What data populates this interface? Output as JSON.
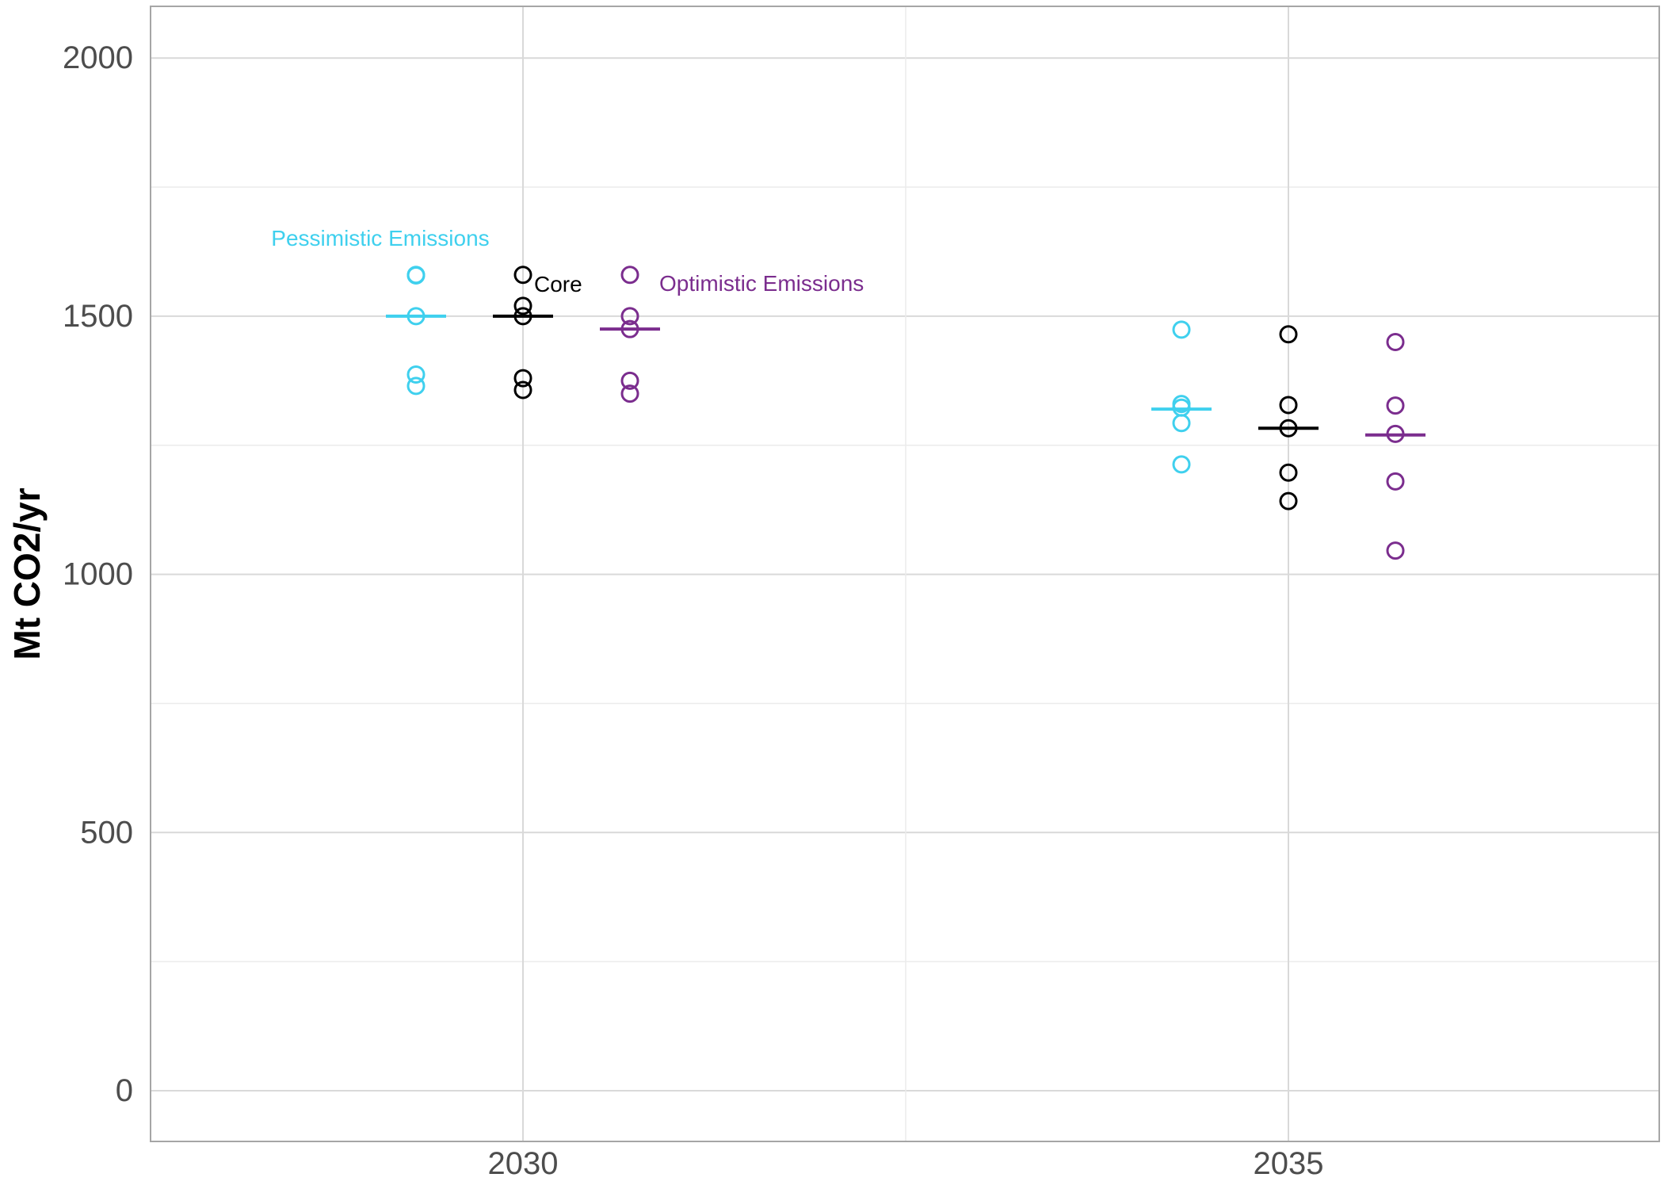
{
  "chart_data": {
    "type": "scatter",
    "title": "",
    "xlabel": "",
    "ylabel": "Mt CO2/yr",
    "ylim": [
      -100,
      2100
    ],
    "y_ticks": [
      0,
      500,
      1000,
      1500,
      2000
    ],
    "y_tick_labels": [
      "0",
      "500",
      "1000",
      "1500",
      "2000"
    ],
    "categories": [
      "2030",
      "2035"
    ],
    "grid": true,
    "legend": "none",
    "series": [
      {
        "name": "Pessimistic Emissions",
        "color": "#3fd0ee",
        "points": {
          "2030": [
            1580,
            1579,
            1500,
            1387,
            1365
          ],
          "2035": [
            1474,
            1330,
            1323,
            1293,
            1213
          ]
        },
        "median": {
          "2030": 1500,
          "2035": 1320
        }
      },
      {
        "name": "Core",
        "color": "#000000",
        "points": {
          "2030": [
            1580,
            1520,
            1500,
            1380,
            1357
          ],
          "2035": [
            1465,
            1328,
            1283,
            1197,
            1142
          ]
        },
        "median": {
          "2030": 1500,
          "2035": 1283
        }
      },
      {
        "name": "Optimistic Emissions",
        "color": "#7b2d8e",
        "points": {
          "2030": [
            1580,
            1500,
            1475,
            1375,
            1350
          ],
          "2035": [
            1450,
            1327,
            1272,
            1180,
            1046
          ]
        },
        "median": {
          "2030": 1475,
          "2035": 1270
        }
      }
    ],
    "annotations": [
      {
        "text": "Pessimistic Emissions",
        "series": "Pessimistic Emissions"
      },
      {
        "text": "Core",
        "series": "Core"
      },
      {
        "text": "Optimistic Emissions",
        "series": "Optimistic Emissions"
      }
    ]
  }
}
